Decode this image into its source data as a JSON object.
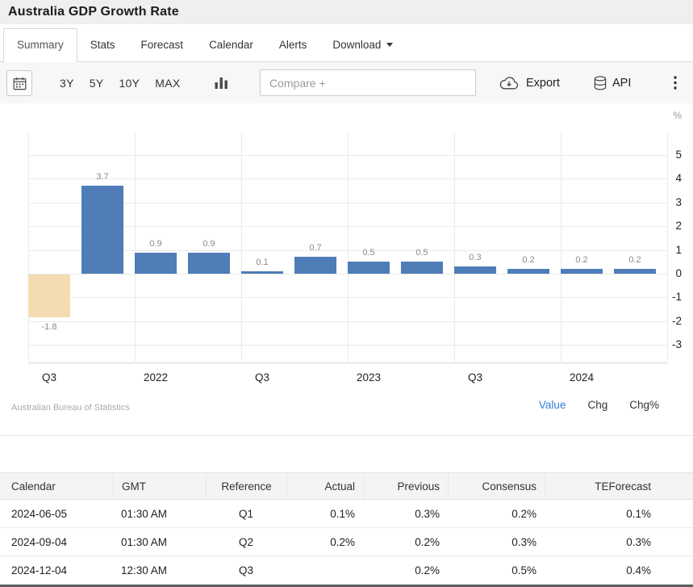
{
  "page": {
    "title": "Australia GDP Growth Rate"
  },
  "tabs": [
    {
      "label": "Summary",
      "active": true
    },
    {
      "label": "Stats"
    },
    {
      "label": "Forecast"
    },
    {
      "label": "Calendar"
    },
    {
      "label": "Alerts"
    },
    {
      "label": "Download",
      "caret": true
    }
  ],
  "toolbar": {
    "ranges": [
      "3Y",
      "5Y",
      "10Y",
      "MAX"
    ],
    "compare_placeholder": "Compare +",
    "export_label": "Export",
    "api_label": "API"
  },
  "chart_data": {
    "type": "bar",
    "title": "Australia GDP Growth Rate",
    "values": [
      -1.8,
      3.7,
      0.9,
      0.9,
      0.1,
      0.7,
      0.5,
      0.5,
      0.3,
      0.2,
      0.2,
      0.2
    ],
    "value_labels": [
      "-1.8",
      "3.7",
      "0.9",
      "0.9",
      "0.1",
      "0.7",
      "0.5",
      "0.5",
      "0.3",
      "0.2",
      "0.2",
      "0.2"
    ],
    "x_ticks": [
      {
        "slot": 0,
        "label": "Q3"
      },
      {
        "slot": 2,
        "label": "2022"
      },
      {
        "slot": 4,
        "label": "Q3"
      },
      {
        "slot": 6,
        "label": "2023"
      },
      {
        "slot": 8,
        "label": "Q3"
      },
      {
        "slot": 10,
        "label": "2024"
      }
    ],
    "y_ticks": [
      5,
      4,
      3,
      2,
      1,
      0,
      -1,
      -2,
      -3
    ],
    "ylim": [
      -3.8,
      5.9
    ],
    "ylabel": "%",
    "grid": true,
    "bar_color": "#4e7db7",
    "highlight_bar": {
      "index": 0,
      "color": "#f3ddb0"
    },
    "source": "Australian Bureau of Statistics",
    "series_toggles": [
      "Value",
      "Chg",
      "Chg%"
    ],
    "active_toggle": "Value"
  },
  "table": {
    "headers": [
      "Calendar",
      "GMT",
      "Reference",
      "Actual",
      "Previous",
      "Consensus",
      "TEForecast"
    ],
    "rows": [
      [
        "2024-06-05",
        "01:30 AM",
        "Q1",
        "0.1%",
        "0.3%",
        "0.2%",
        "0.1%"
      ],
      [
        "2024-09-04",
        "01:30 AM",
        "Q2",
        "0.2%",
        "0.2%",
        "0.3%",
        "0.3%"
      ],
      [
        "2024-12-04",
        "12:30 AM",
        "Q3",
        "",
        "0.2%",
        "0.5%",
        "0.4%"
      ]
    ]
  },
  "colors": {
    "accent_blue": "#2f7ed8",
    "bar_blue": "#4e7db7",
    "bar_tan": "#f3ddb0",
    "header_bg": "#efefef"
  }
}
